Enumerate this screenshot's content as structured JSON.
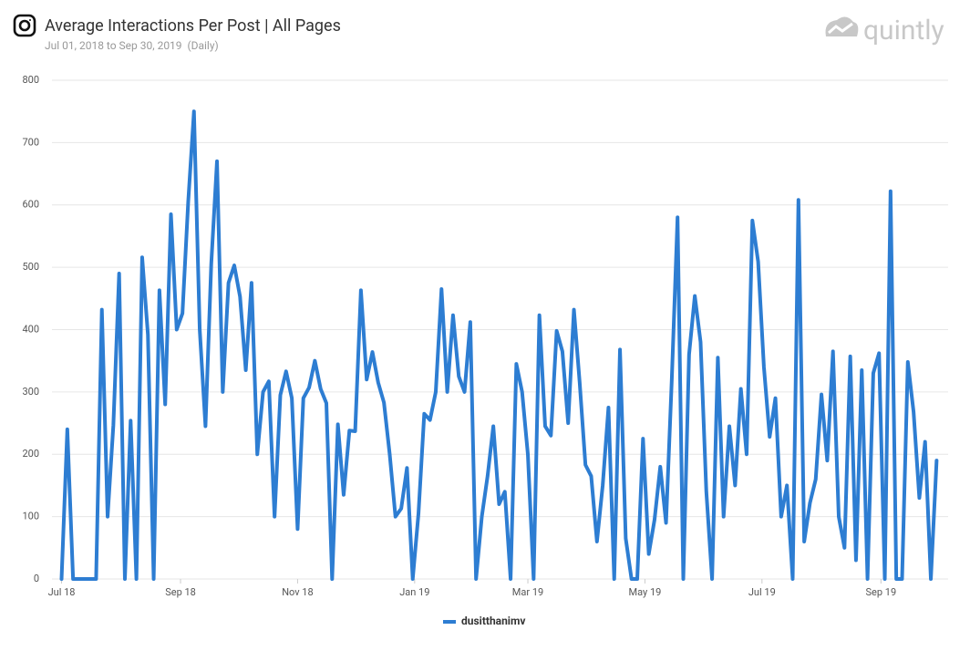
{
  "chart_data": {
    "type": "line",
    "title": "Average Interactions Per Post | All Pages",
    "subtitle": "Jul 01, 2018 to Sep 30, 2019  (Daily)",
    "brand": "quintly",
    "x": [
      0,
      3,
      6,
      9,
      12,
      15,
      18,
      21,
      24,
      27,
      30,
      33,
      36,
      39,
      42,
      45,
      48,
      51,
      54,
      57,
      60,
      63,
      66,
      69,
      72,
      75,
      78,
      81,
      84,
      87,
      90,
      93,
      96,
      99,
      102,
      105,
      108,
      111,
      114,
      117,
      120,
      123,
      126,
      129,
      132,
      135,
      138,
      141,
      144,
      147,
      150,
      153,
      156,
      159,
      162,
      165,
      168,
      171,
      174,
      177,
      180,
      183,
      186,
      189,
      192,
      195,
      198,
      201,
      204,
      207,
      210,
      213,
      216,
      219,
      222,
      225,
      228,
      231,
      234,
      237,
      240,
      243,
      246,
      249,
      252,
      255,
      258,
      261,
      264,
      267,
      270,
      273,
      276,
      279,
      282,
      285,
      288,
      291,
      294,
      297,
      300,
      303,
      306,
      309,
      312,
      315,
      318,
      321,
      324,
      327,
      330,
      333,
      336,
      339,
      342,
      345,
      348,
      351,
      354,
      357,
      360,
      363,
      366,
      369,
      372,
      375,
      378,
      381,
      384,
      387,
      390,
      393,
      396,
      399,
      402,
      405,
      408,
      411,
      414,
      417,
      420,
      423,
      426,
      429,
      432,
      435,
      438,
      441,
      444,
      447,
      450,
      453,
      456
    ],
    "series": [
      {
        "name": "dusitthanimv",
        "color": "#2d7dd2",
        "values": [
          0,
          240,
          0,
          0,
          0,
          0,
          0,
          432,
          100,
          247,
          490,
          0,
          254,
          0,
          516,
          392,
          0,
          463,
          280,
          585,
          400,
          426,
          605,
          750,
          400,
          245,
          505,
          670,
          300,
          475,
          503,
          453,
          335,
          475,
          200,
          300,
          317,
          100,
          295,
          333,
          290,
          80,
          290,
          307,
          350,
          305,
          282,
          0,
          248,
          135,
          238,
          237,
          463,
          320,
          364,
          315,
          283,
          200,
          100,
          113,
          178,
          0,
          105,
          265,
          255,
          300,
          465,
          300,
          423,
          325,
          300,
          412,
          0,
          100,
          165,
          245,
          120,
          140,
          0,
          345,
          300,
          200,
          0,
          423,
          245,
          230,
          398,
          365,
          250,
          432,
          315,
          183,
          165,
          60,
          150,
          275,
          0,
          368,
          65,
          0,
          0,
          225,
          40,
          95,
          180,
          90,
          320,
          580,
          0,
          360,
          454,
          380,
          140,
          0,
          355,
          100,
          245,
          150,
          305,
          200,
          575,
          509,
          340,
          228,
          290,
          100,
          150,
          0,
          608,
          60,
          122,
          160,
          296,
          190,
          365,
          100,
          50,
          357,
          30,
          335,
          0,
          330,
          362,
          0,
          622,
          0,
          0,
          348,
          268,
          130,
          220,
          0,
          190
        ]
      }
    ],
    "xlim": [
      -5,
      462
    ],
    "xticks": [
      {
        "value": 0,
        "label": "Jul 18"
      },
      {
        "value": 62,
        "label": "Sep 18"
      },
      {
        "value": 123,
        "label": "Nov 18"
      },
      {
        "value": 184,
        "label": "Jan 19"
      },
      {
        "value": 243,
        "label": "Mar 19"
      },
      {
        "value": 304,
        "label": "May 19"
      },
      {
        "value": 365,
        "label": "Jul 19"
      },
      {
        "value": 427,
        "label": "Sep 19"
      }
    ],
    "ylim": [
      0,
      800
    ],
    "yticks": [
      0,
      100,
      200,
      300,
      400,
      500,
      600,
      700,
      800
    ],
    "grid": true
  }
}
